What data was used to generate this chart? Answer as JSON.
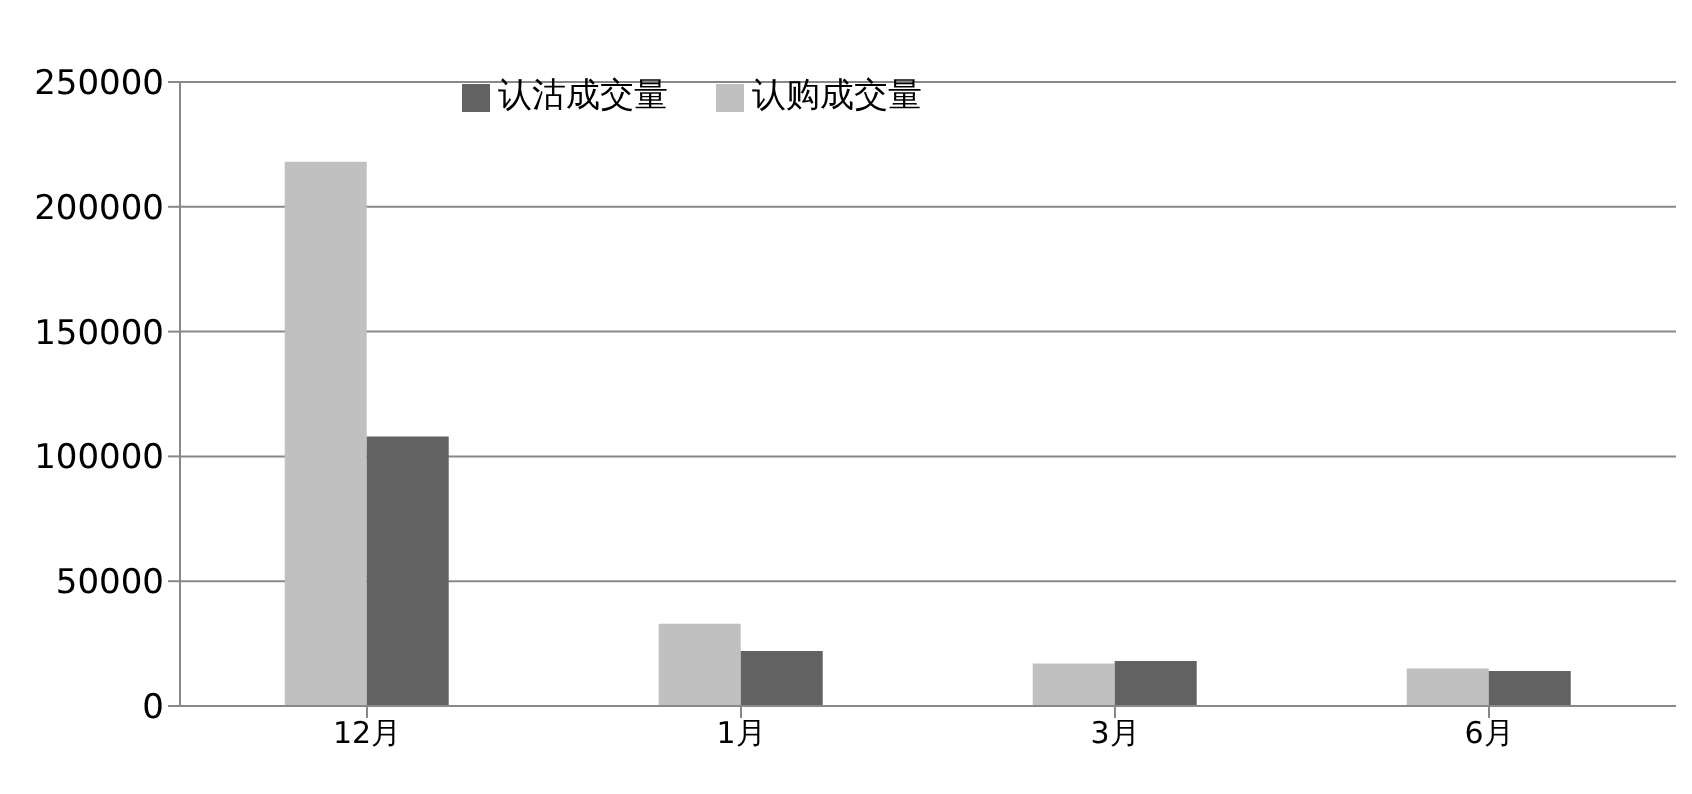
{
  "chart_data": {
    "type": "bar",
    "categories": [
      "12月",
      "1月",
      "3月",
      "6月"
    ],
    "series": [
      {
        "name": "认购成交量",
        "color": "#c0c0c0",
        "values": [
          218000,
          33000,
          17000,
          15000
        ]
      },
      {
        "name": "认沽成交量",
        "color": "#626262",
        "values": [
          108000,
          22000,
          18000,
          14000
        ]
      }
    ],
    "ylim": [
      0,
      250000
    ],
    "yticks": [
      0,
      50000,
      100000,
      150000,
      200000,
      250000
    ],
    "grid": "y",
    "legend": "top"
  }
}
